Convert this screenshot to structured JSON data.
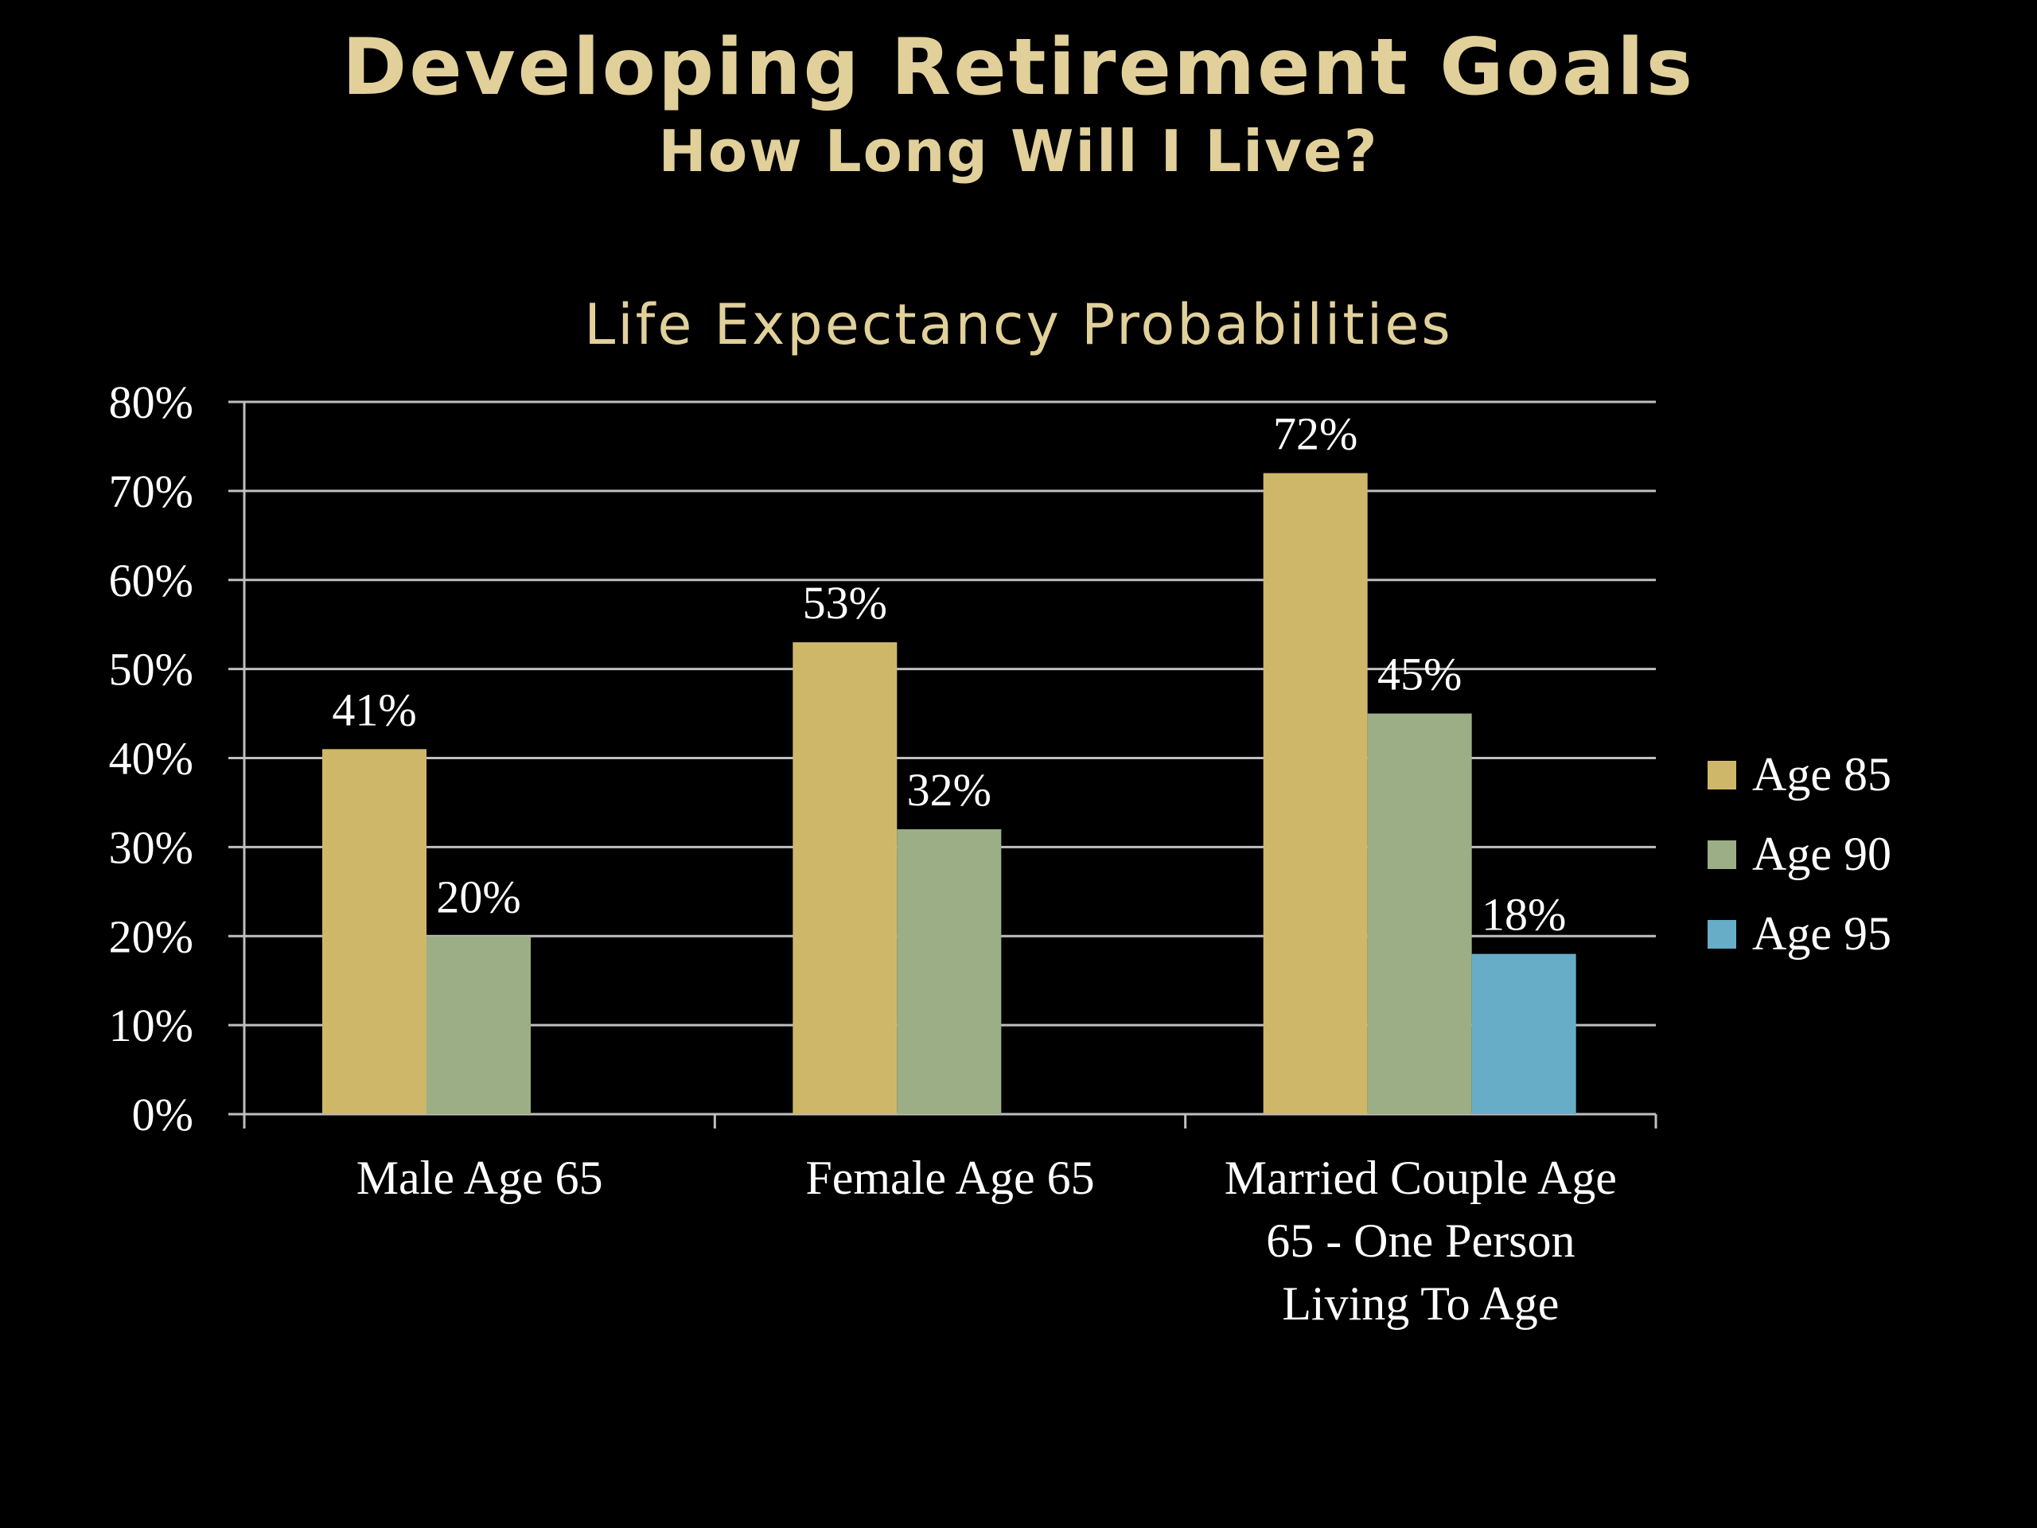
{
  "slide": {
    "title": "Developing Retirement Goals",
    "subtitle": "How Long Will I Live?"
  },
  "colors": {
    "background": "#000000",
    "title": "#e1d09a",
    "text": "#ffffff",
    "gridline": "#bfbfbf",
    "age85": "#cfb76a",
    "age90": "#9bae86",
    "age95": "#67adc7"
  },
  "chart_data": {
    "type": "bar",
    "title": "Life Expectancy Probabilities",
    "xlabel": "",
    "ylabel": "",
    "ylim": [
      0,
      0.8
    ],
    "yticks": [
      0,
      0.1,
      0.2,
      0.3,
      0.4,
      0.5,
      0.6,
      0.7,
      0.8
    ],
    "ytick_labels": [
      "0%",
      "10%",
      "20%",
      "30%",
      "40%",
      "50%",
      "60%",
      "70%",
      "80%"
    ],
    "grid": true,
    "legend_position": "right",
    "categories": [
      "Male Age 65",
      "Female Age 65",
      "Married Couple Age 65 - One Person Living To Age"
    ],
    "category_label_lines": [
      [
        "Male Age 65"
      ],
      [
        "Female Age 65"
      ],
      [
        "Married Couple Age",
        "65 - One Person",
        "Living To Age"
      ]
    ],
    "series": [
      {
        "name": "Age 85",
        "color": "#cfb76a",
        "values": [
          0.41,
          0.53,
          0.72
        ],
        "labels": [
          "41%",
          "53%",
          "72%"
        ]
      },
      {
        "name": "Age 90",
        "color": "#9bae86",
        "values": [
          0.2,
          0.32,
          0.45
        ],
        "labels": [
          "20%",
          "32%",
          "45%"
        ]
      },
      {
        "name": "Age 95",
        "color": "#67adc7",
        "values": [
          null,
          null,
          0.18
        ],
        "labels": [
          null,
          null,
          "18%"
        ]
      }
    ]
  }
}
